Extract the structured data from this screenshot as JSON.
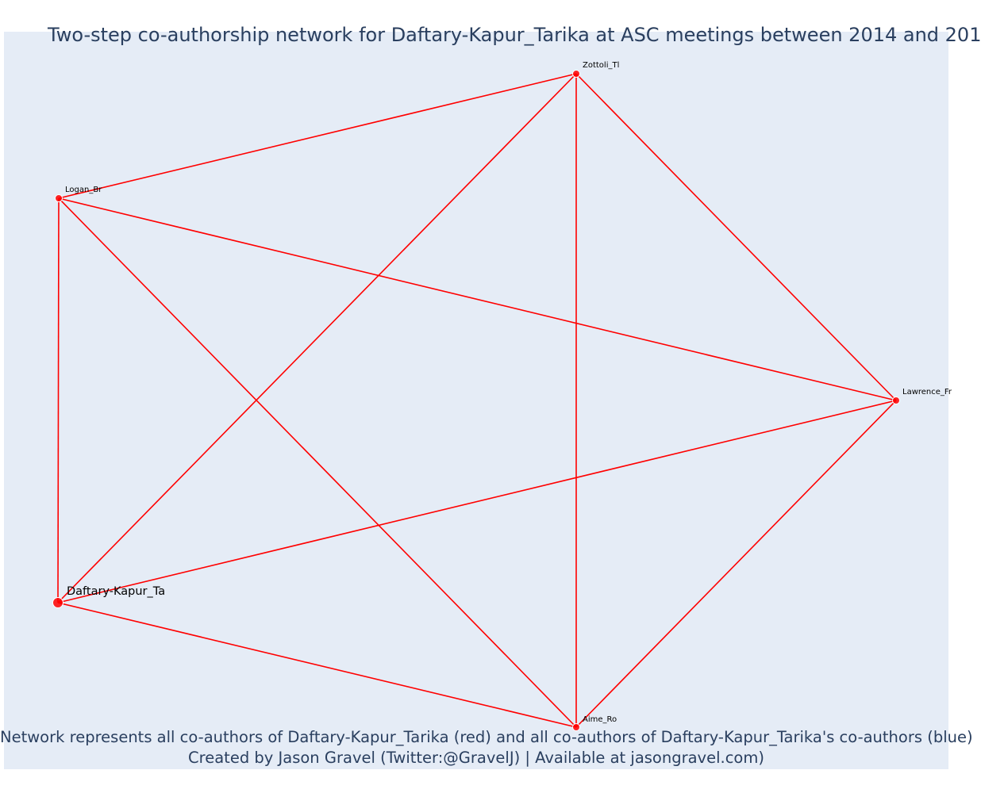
{
  "title": "Two-step co-authorship network for Daftary-Kapur_Tarika at ASC meetings between 2014 and 201",
  "caption": {
    "line1": "Network represents all co-authors of Daftary-Kapur_Tarika (red) and all co-authors of Daftary-Kapur_Tarika's co-authors (blue)",
    "line2": "Created by Jason Gravel (Twitter:@GravelJ) | Available at jasongravel.com)"
  },
  "colors": {
    "edge": "#ff0000",
    "node": "#ff0000",
    "plot_background": "#e5ecf6",
    "text": "#2a3f5f"
  },
  "chart_data": {
    "type": "network",
    "nodes": [
      {
        "id": "Zottoli_Tl",
        "label": "Zottoli_Tl",
        "group": "co-author",
        "color": "red"
      },
      {
        "id": "Logan_Br",
        "label": "Logan_Br",
        "group": "co-author",
        "color": "red"
      },
      {
        "id": "Lawrence_Fr",
        "label": "Lawrence_Fr",
        "group": "co-author",
        "color": "red"
      },
      {
        "id": "Daftary-Kapur_Ta",
        "label": "Daftary-Kapur_Ta",
        "group": "focal",
        "color": "red"
      },
      {
        "id": "Aime_Ro",
        "label": "Aime_Ro",
        "group": "co-author",
        "color": "red"
      }
    ],
    "edges": [
      [
        "Logan_Br",
        "Zottoli_Tl"
      ],
      [
        "Zottoli_Tl",
        "Daftary-Kapur_Ta"
      ],
      [
        "Zottoli_Tl",
        "Aime_Ro"
      ],
      [
        "Zottoli_Tl",
        "Lawrence_Fr"
      ],
      [
        "Logan_Br",
        "Daftary-Kapur_Ta"
      ],
      [
        "Logan_Br",
        "Aime_Ro"
      ],
      [
        "Logan_Br",
        "Lawrence_Fr"
      ],
      [
        "Daftary-Kapur_Ta",
        "Lawrence_Fr"
      ],
      [
        "Daftary-Kapur_Ta",
        "Aime_Ro"
      ],
      [
        "Lawrence_Fr",
        "Aime_Ro"
      ]
    ]
  }
}
